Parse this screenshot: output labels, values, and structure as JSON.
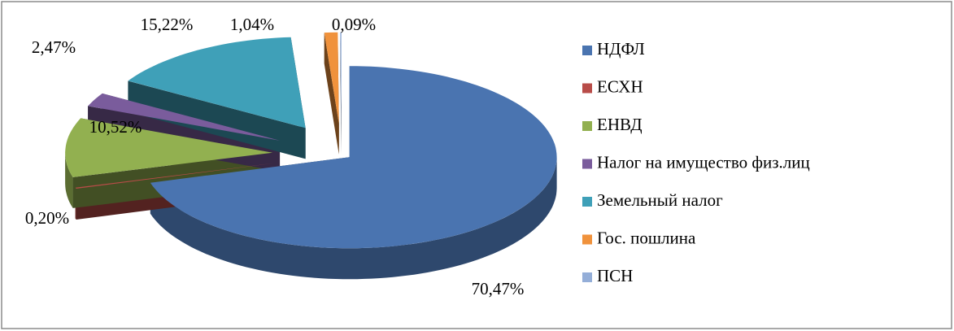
{
  "chart_data": {
    "type": "pie",
    "categories": [
      "НДФЛ",
      "ЕСХН",
      "ЕНВД",
      "Налог на имущество физ.лиц",
      "Земельный налог",
      "Гос. пошлина",
      "ПСН"
    ],
    "values": [
      70.47,
      0.2,
      10.52,
      2.47,
      15.22,
      1.04,
      0.09
    ],
    "value_labels": [
      "70,47%",
      "0,20%",
      "10,52%",
      "2,47%",
      "15,22%",
      "1,04%",
      "0,09%"
    ],
    "colors": [
      "#4a74b0",
      "#b84c48",
      "#92b050",
      "#7a5c9c",
      "#3fa0b8",
      "#f0923c",
      "#94aed8"
    ],
    "legend": "right"
  }
}
